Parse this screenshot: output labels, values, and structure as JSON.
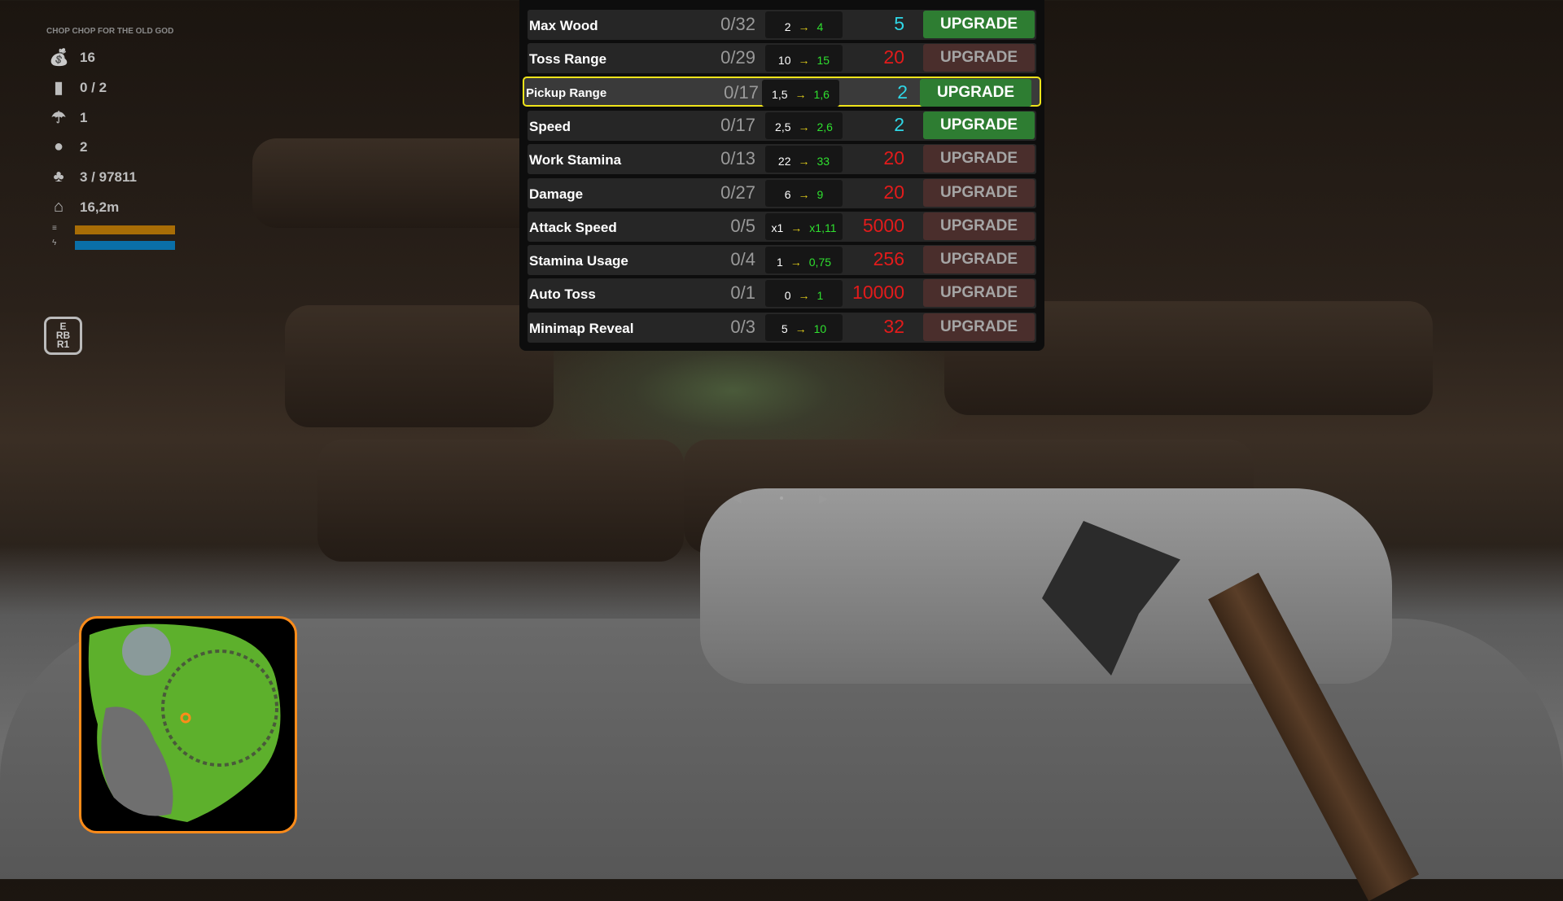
{
  "hud": {
    "title": "CHOP CHOP FOR THE OLD GOD",
    "stats": [
      {
        "icon": "money-bag-icon",
        "value": "16"
      },
      {
        "icon": "log-icon",
        "value": "0 / 2"
      },
      {
        "icon": "mushroom-icon",
        "value": "1"
      },
      {
        "icon": "pot-icon",
        "value": "2"
      },
      {
        "icon": "tree-icon",
        "value": "3 / 97811"
      },
      {
        "icon": "house-icon",
        "value": "16,2m"
      }
    ],
    "bars": [
      {
        "icon": "speed-icon",
        "color": "#a86d06",
        "level": 1.0
      },
      {
        "icon": "lightning-icon",
        "color": "#0a6fa8",
        "level": 1.0
      }
    ],
    "key_hint": [
      "E",
      "RB",
      "R1"
    ]
  },
  "upgrades": [
    {
      "name": "Max Wood",
      "level": "0/32",
      "from": "2",
      "to": "4",
      "cost": "5",
      "cost_color": "#2fd7e6",
      "affordable": true,
      "selected": false
    },
    {
      "name": "Toss Range",
      "level": "0/29",
      "from": "10",
      "to": "15",
      "cost": "20",
      "cost_color": "#e31b1b",
      "affordable": false,
      "selected": false
    },
    {
      "name": "Pickup Range",
      "level": "0/17",
      "from": "1,5",
      "to": "1,6",
      "cost": "2",
      "cost_color": "#2fd7e6",
      "affordable": true,
      "selected": true
    },
    {
      "name": "Speed",
      "level": "0/17",
      "from": "2,5",
      "to": "2,6",
      "cost": "2",
      "cost_color": "#2fd7e6",
      "affordable": true,
      "selected": false
    },
    {
      "name": "Work Stamina",
      "level": "0/13",
      "from": "22",
      "to": "33",
      "cost": "20",
      "cost_color": "#e31b1b",
      "affordable": false,
      "selected": false
    },
    {
      "name": "Damage",
      "level": "0/27",
      "from": "6",
      "to": "9",
      "cost": "20",
      "cost_color": "#e31b1b",
      "affordable": false,
      "selected": false
    },
    {
      "name": "Attack Speed",
      "level": "0/5",
      "from": "x1",
      "to": "x1,11",
      "cost": "5000",
      "cost_color": "#e31b1b",
      "affordable": false,
      "selected": false
    },
    {
      "name": "Stamina Usage",
      "level": "0/4",
      "from": "1",
      "to": "0,75",
      "cost": "256",
      "cost_color": "#e31b1b",
      "affordable": false,
      "selected": false
    },
    {
      "name": "Auto Toss",
      "level": "0/1",
      "from": "0",
      "to": "1",
      "cost": "10000",
      "cost_color": "#e31b1b",
      "affordable": false,
      "selected": false
    },
    {
      "name": "Minimap Reveal",
      "level": "0/3",
      "from": "5",
      "to": "10",
      "cost": "32",
      "cost_color": "#e31b1b",
      "affordable": false,
      "selected": false
    }
  ],
  "upgrade_label": "UPGRADE",
  "arrow": "→"
}
